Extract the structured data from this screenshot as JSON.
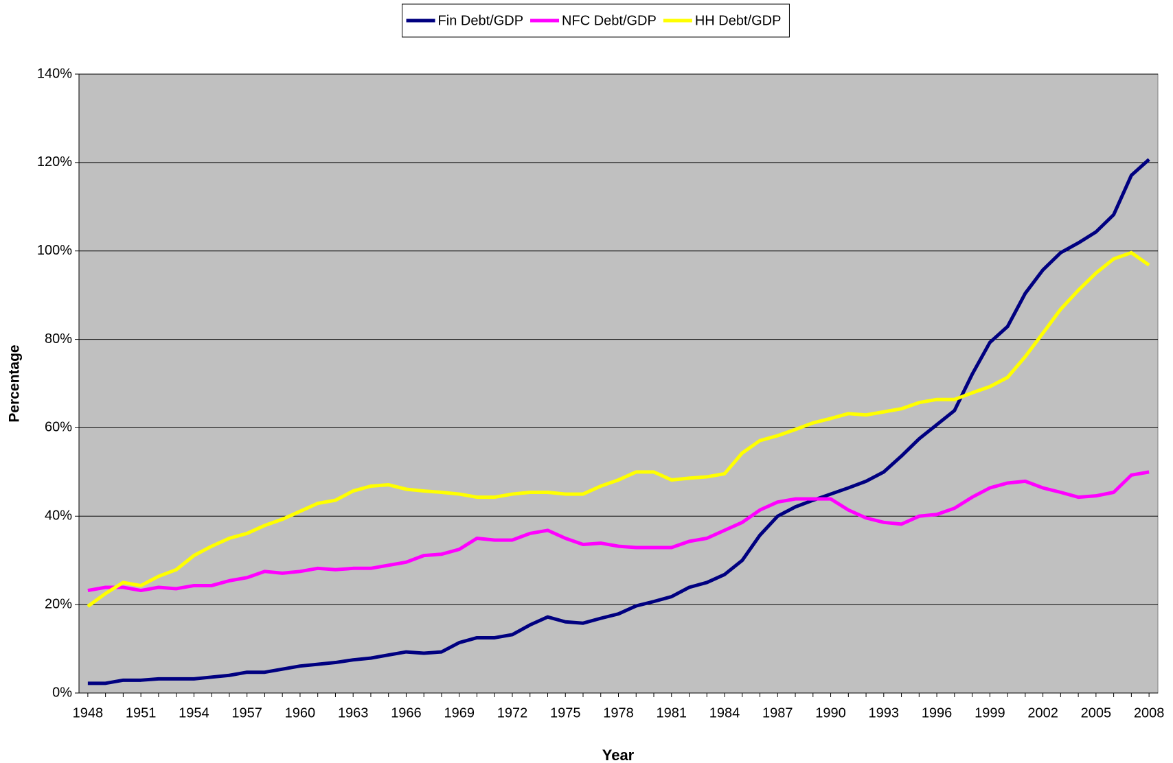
{
  "chart_data": {
    "type": "line",
    "xlabel": "Year",
    "ylabel": "Percentage",
    "x": [
      1948,
      1949,
      1950,
      1951,
      1952,
      1953,
      1954,
      1955,
      1956,
      1957,
      1958,
      1959,
      1960,
      1961,
      1962,
      1963,
      1964,
      1965,
      1966,
      1967,
      1968,
      1969,
      1970,
      1971,
      1972,
      1973,
      1974,
      1975,
      1976,
      1977,
      1978,
      1979,
      1980,
      1981,
      1982,
      1983,
      1984,
      1985,
      1986,
      1987,
      1988,
      1989,
      1990,
      1991,
      1992,
      1993,
      1994,
      1995,
      1996,
      1997,
      1998,
      1999,
      2000,
      2001,
      2002,
      2003,
      2004,
      2005,
      2006,
      2007,
      2008
    ],
    "series": [
      {
        "name": "Fin Debt/GDP",
        "color": "#000080",
        "values": [
          2.2,
          2.2,
          2.9,
          2.9,
          3.2,
          3.2,
          3.2,
          3.6,
          4.0,
          4.7,
          4.7,
          5.4,
          6.1,
          6.5,
          6.9,
          7.5,
          7.9,
          8.6,
          9.3,
          9.0,
          9.3,
          11.4,
          12.5,
          12.5,
          13.2,
          15.4,
          17.2,
          16.1,
          15.8,
          16.9,
          17.9,
          19.7,
          20.7,
          21.8,
          23.9,
          25.0,
          26.8,
          30.0,
          35.7,
          40.0,
          42.1,
          43.6,
          45.0,
          46.4,
          47.9,
          50.0,
          53.6,
          57.5,
          60.7,
          63.9,
          72.1,
          79.3,
          82.9,
          90.4,
          95.7,
          99.6,
          101.8,
          104.3,
          108.2,
          117.1,
          120.7
        ]
      },
      {
        "name": "NFC Debt/GDP",
        "color": "#ff00ff",
        "values": [
          23.2,
          23.9,
          23.9,
          23.2,
          23.9,
          23.6,
          24.3,
          24.3,
          25.4,
          26.1,
          27.5,
          27.1,
          27.5,
          28.2,
          27.9,
          28.2,
          28.2,
          28.9,
          29.6,
          31.1,
          31.4,
          32.5,
          35.0,
          34.6,
          34.6,
          36.1,
          36.8,
          35.0,
          33.6,
          33.9,
          33.2,
          32.9,
          32.9,
          32.9,
          34.3,
          35.0,
          36.8,
          38.6,
          41.4,
          43.2,
          43.9,
          43.9,
          43.9,
          41.4,
          39.6,
          38.6,
          38.2,
          40.0,
          40.4,
          41.8,
          44.3,
          46.4,
          47.5,
          47.9,
          46.4,
          45.4,
          44.3,
          44.6,
          45.4,
          49.3,
          50.0
        ]
      },
      {
        "name": "HH Debt/GDP",
        "color": "#ffff00",
        "values": [
          19.6,
          22.5,
          25.0,
          24.3,
          26.4,
          27.9,
          31.1,
          33.2,
          35.0,
          36.1,
          37.9,
          39.3,
          41.1,
          42.9,
          43.6,
          45.7,
          46.8,
          47.1,
          46.1,
          45.7,
          45.4,
          45.0,
          44.3,
          44.3,
          45.0,
          45.4,
          45.4,
          45.0,
          45.0,
          46.8,
          48.2,
          50.0,
          50.0,
          48.2,
          48.6,
          48.9,
          49.6,
          54.3,
          57.1,
          58.2,
          59.6,
          61.1,
          62.1,
          63.2,
          62.9,
          63.6,
          64.3,
          65.7,
          66.4,
          66.4,
          67.9,
          69.3,
          71.4,
          76.1,
          81.4,
          86.8,
          91.1,
          95.0,
          98.2,
          99.6,
          96.8
        ]
      }
    ],
    "xlim": [
      1947.5,
      2008.5
    ],
    "xticks": [
      1948,
      1951,
      1954,
      1957,
      1960,
      1963,
      1966,
      1969,
      1972,
      1975,
      1978,
      1981,
      1984,
      1987,
      1990,
      1993,
      1996,
      1999,
      2002,
      2005,
      2008
    ],
    "ylim": [
      0,
      140
    ],
    "yticks": [
      {
        "value": 0,
        "label": "0%"
      },
      {
        "value": 20,
        "label": "20%"
      },
      {
        "value": 40,
        "label": "40%"
      },
      {
        "value": 60,
        "label": "60%"
      },
      {
        "value": 80,
        "label": "80%"
      },
      {
        "value": 100,
        "label": "100%"
      },
      {
        "value": 120,
        "label": "120%"
      },
      {
        "value": 140,
        "label": "140%"
      }
    ],
    "grid": true,
    "legend": "top",
    "background": "#c0c0c0"
  }
}
